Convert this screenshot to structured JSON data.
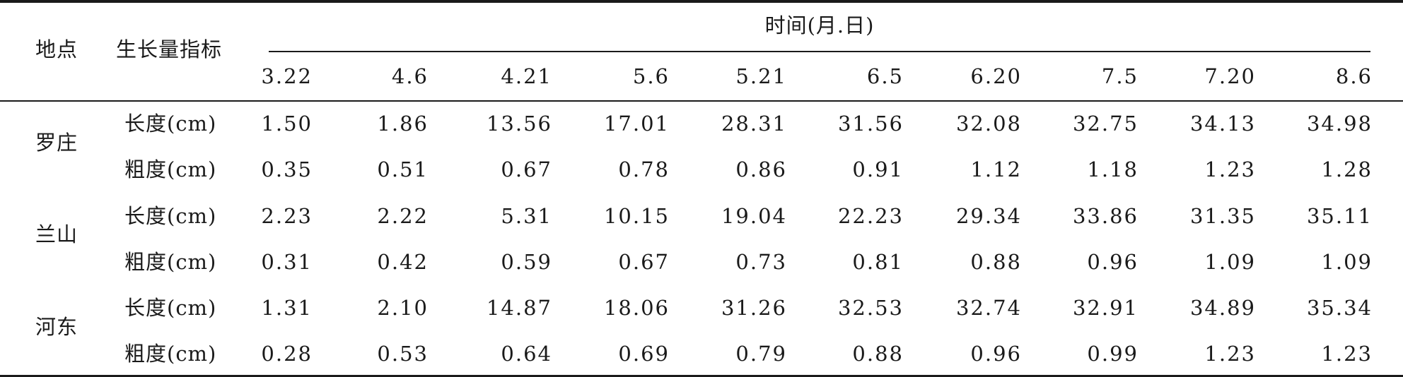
{
  "header": {
    "location_label": "地点",
    "metric_label": "生长量指标",
    "time_label": "时间(月.日)",
    "dates": [
      "3.22",
      "4.6",
      "4.21",
      "5.6",
      "5.21",
      "6.5",
      "6.20",
      "7.5",
      "7.20",
      "8.6"
    ]
  },
  "rows": [
    {
      "location": "罗庄",
      "metrics": [
        {
          "label": "长度(cm)",
          "values": [
            "1.50",
            "1.86",
            "13.56",
            "17.01",
            "28.31",
            "31.56",
            "32.08",
            "32.75",
            "34.13",
            "34.98"
          ]
        },
        {
          "label": "粗度(cm)",
          "values": [
            "0.35",
            "0.51",
            "0.67",
            "0.78",
            "0.86",
            "0.91",
            "1.12",
            "1.18",
            "1.23",
            "1.28"
          ]
        }
      ]
    },
    {
      "location": "兰山",
      "metrics": [
        {
          "label": "长度(cm)",
          "values": [
            "2.23",
            "2.22",
            "5.31",
            "10.15",
            "19.04",
            "22.23",
            "29.34",
            "33.86",
            "31.35",
            "35.11"
          ]
        },
        {
          "label": "粗度(cm)",
          "values": [
            "0.31",
            "0.42",
            "0.59",
            "0.67",
            "0.73",
            "0.81",
            "0.88",
            "0.96",
            "1.09",
            "1.09"
          ]
        }
      ]
    },
    {
      "location": "河东",
      "metrics": [
        {
          "label": "长度(cm)",
          "values": [
            "1.31",
            "2.10",
            "14.87",
            "18.06",
            "31.26",
            "32.53",
            "32.74",
            "32.91",
            "34.89",
            "35.34"
          ]
        },
        {
          "label": "粗度(cm)",
          "values": [
            "0.28",
            "0.53",
            "0.64",
            "0.69",
            "0.79",
            "0.88",
            "0.96",
            "0.99",
            "1.23",
            "1.23"
          ]
        }
      ]
    }
  ]
}
